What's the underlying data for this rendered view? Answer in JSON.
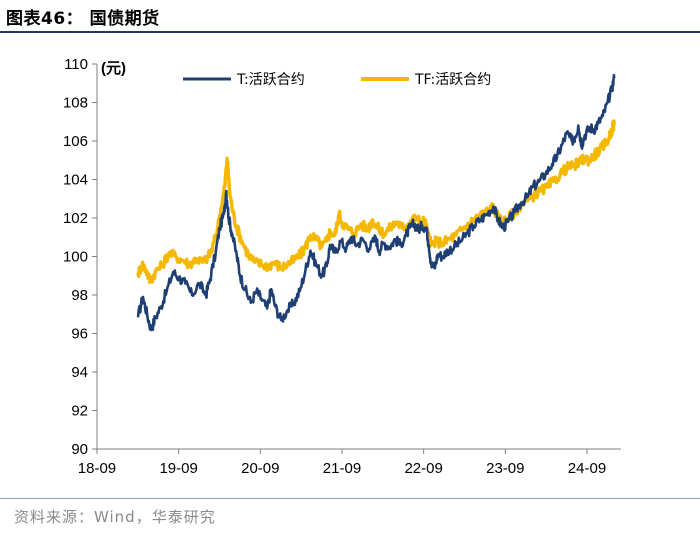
{
  "header": {
    "title": "图表46：  国债期货"
  },
  "footer": {
    "source": "资料来源：Wind，华泰研究"
  },
  "chart_data": {
    "type": "line",
    "unit_label": "(元)",
    "ylim": [
      90,
      110
    ],
    "y_ticks": [
      90,
      92,
      94,
      96,
      98,
      100,
      102,
      104,
      106,
      108,
      110
    ],
    "x_ticks": [
      "18-09",
      "19-09",
      "20-09",
      "21-09",
      "22-09",
      "23-09",
      "24-09"
    ],
    "x_range": [
      2018.667,
      2025.083
    ],
    "grid": false,
    "legend_position": "top",
    "series": [
      {
        "name": "T:活跃合约",
        "color": "#1f3f73",
        "points": [
          [
            2019.17,
            96.9
          ],
          [
            2019.23,
            97.9
          ],
          [
            2019.28,
            97.0
          ],
          [
            2019.33,
            96.2
          ],
          [
            2019.38,
            96.8
          ],
          [
            2019.45,
            97.4
          ],
          [
            2019.52,
            98.2
          ],
          [
            2019.6,
            99.2
          ],
          [
            2019.67,
            98.9
          ],
          [
            2019.75,
            98.6
          ],
          [
            2019.83,
            98.0
          ],
          [
            2019.92,
            98.6
          ],
          [
            2020.0,
            98.0
          ],
          [
            2020.05,
            98.8
          ],
          [
            2020.12,
            100.2
          ],
          [
            2020.17,
            101.5
          ],
          [
            2020.22,
            102.2
          ],
          [
            2020.25,
            103.4
          ],
          [
            2020.28,
            102.0
          ],
          [
            2020.32,
            101.2
          ],
          [
            2020.38,
            100.0
          ],
          [
            2020.42,
            99.0
          ],
          [
            2020.48,
            98.3
          ],
          [
            2020.55,
            97.6
          ],
          [
            2020.62,
            98.2
          ],
          [
            2020.68,
            97.8
          ],
          [
            2020.75,
            97.3
          ],
          [
            2020.8,
            98.3
          ],
          [
            2020.85,
            97.4
          ],
          [
            2020.92,
            96.7
          ],
          [
            2021.0,
            97.2
          ],
          [
            2021.08,
            97.6
          ],
          [
            2021.15,
            98.2
          ],
          [
            2021.22,
            99.3
          ],
          [
            2021.28,
            100.3
          ],
          [
            2021.35,
            99.6
          ],
          [
            2021.42,
            99.0
          ],
          [
            2021.48,
            99.5
          ],
          [
            2021.52,
            100.6
          ],
          [
            2021.58,
            100.2
          ],
          [
            2021.65,
            100.8
          ],
          [
            2021.72,
            100.4
          ],
          [
            2021.78,
            101.0
          ],
          [
            2021.85,
            100.6
          ],
          [
            2021.92,
            100.9
          ],
          [
            2022.0,
            100.4
          ],
          [
            2022.08,
            101.0
          ],
          [
            2022.12,
            100.3
          ],
          [
            2022.18,
            100.7
          ],
          [
            2022.25,
            100.5
          ],
          [
            2022.32,
            100.9
          ],
          [
            2022.38,
            100.6
          ],
          [
            2022.45,
            101.1
          ],
          [
            2022.5,
            101.5
          ],
          [
            2022.55,
            101.7
          ],
          [
            2022.6,
            101.4
          ],
          [
            2022.65,
            101.6
          ],
          [
            2022.7,
            101.5
          ],
          [
            2022.73,
            100.6
          ],
          [
            2022.76,
            99.6
          ],
          [
            2022.8,
            99.4
          ],
          [
            2022.84,
            100.1
          ],
          [
            2022.9,
            100.0
          ],
          [
            2022.96,
            100.3
          ],
          [
            2023.04,
            100.5
          ],
          [
            2023.12,
            100.8
          ],
          [
            2023.2,
            101.2
          ],
          [
            2023.28,
            101.6
          ],
          [
            2023.36,
            101.9
          ],
          [
            2023.44,
            102.2
          ],
          [
            2023.52,
            102.6
          ],
          [
            2023.58,
            101.9
          ],
          [
            2023.64,
            101.5
          ],
          [
            2023.7,
            101.8
          ],
          [
            2023.78,
            102.3
          ],
          [
            2023.86,
            102.8
          ],
          [
            2023.94,
            103.1
          ],
          [
            2024.0,
            103.6
          ],
          [
            2024.08,
            103.9
          ],
          [
            2024.16,
            104.3
          ],
          [
            2024.24,
            104.8
          ],
          [
            2024.3,
            105.2
          ],
          [
            2024.36,
            105.8
          ],
          [
            2024.42,
            106.4
          ],
          [
            2024.48,
            106.0
          ],
          [
            2024.52,
            106.2
          ],
          [
            2024.56,
            106.8
          ],
          [
            2024.6,
            105.8
          ],
          [
            2024.64,
            106.3
          ],
          [
            2024.7,
            106.7
          ],
          [
            2024.75,
            106.6
          ],
          [
            2024.8,
            106.9
          ],
          [
            2024.86,
            107.3
          ],
          [
            2024.92,
            108.0
          ],
          [
            2024.97,
            108.7
          ],
          [
            2025.0,
            109.3
          ]
        ]
      },
      {
        "name": "TF:活跃合约",
        "color": "#f5b800",
        "points": [
          [
            2019.17,
            99.1
          ],
          [
            2019.22,
            99.6
          ],
          [
            2019.27,
            99.3
          ],
          [
            2019.32,
            98.7
          ],
          [
            2019.38,
            99.2
          ],
          [
            2019.46,
            99.5
          ],
          [
            2019.55,
            100.2
          ],
          [
            2019.63,
            100.0
          ],
          [
            2019.72,
            99.8
          ],
          [
            2019.8,
            99.6
          ],
          [
            2019.88,
            99.9
          ],
          [
            2019.96,
            99.7
          ],
          [
            2020.03,
            100.0
          ],
          [
            2020.08,
            100.4
          ],
          [
            2020.14,
            101.4
          ],
          [
            2020.19,
            102.6
          ],
          [
            2020.23,
            103.6
          ],
          [
            2020.26,
            105.1
          ],
          [
            2020.29,
            103.4
          ],
          [
            2020.33,
            102.3
          ],
          [
            2020.38,
            101.5
          ],
          [
            2020.44,
            100.8
          ],
          [
            2020.52,
            100.1
          ],
          [
            2020.6,
            99.7
          ],
          [
            2020.68,
            99.6
          ],
          [
            2020.76,
            99.5
          ],
          [
            2020.84,
            99.7
          ],
          [
            2020.92,
            99.4
          ],
          [
            2021.0,
            99.6
          ],
          [
            2021.08,
            99.8
          ],
          [
            2021.16,
            100.1
          ],
          [
            2021.22,
            100.5
          ],
          [
            2021.28,
            101.1
          ],
          [
            2021.35,
            100.9
          ],
          [
            2021.42,
            100.5
          ],
          [
            2021.48,
            100.8
          ],
          [
            2021.52,
            101.3
          ],
          [
            2021.58,
            101.1
          ],
          [
            2021.63,
            102.2
          ],
          [
            2021.68,
            101.7
          ],
          [
            2021.75,
            101.4
          ],
          [
            2021.82,
            101.2
          ],
          [
            2021.9,
            101.7
          ],
          [
            2021.98,
            101.4
          ],
          [
            2022.04,
            101.9
          ],
          [
            2022.1,
            101.5
          ],
          [
            2022.18,
            101.2
          ],
          [
            2022.26,
            101.5
          ],
          [
            2022.34,
            101.8
          ],
          [
            2022.4,
            101.5
          ],
          [
            2022.46,
            101.6
          ],
          [
            2022.52,
            101.9
          ],
          [
            2022.58,
            102.0
          ],
          [
            2022.64,
            101.7
          ],
          [
            2022.68,
            101.9
          ],
          [
            2022.72,
            101.1
          ],
          [
            2022.76,
            100.6
          ],
          [
            2022.82,
            100.8
          ],
          [
            2022.9,
            100.7
          ],
          [
            2022.98,
            100.9
          ],
          [
            2023.06,
            101.1
          ],
          [
            2023.14,
            101.4
          ],
          [
            2023.22,
            101.7
          ],
          [
            2023.3,
            102.0
          ],
          [
            2023.38,
            102.2
          ],
          [
            2023.46,
            102.4
          ],
          [
            2023.52,
            102.6
          ],
          [
            2023.58,
            102.0
          ],
          [
            2023.64,
            101.8
          ],
          [
            2023.7,
            102.0
          ],
          [
            2023.78,
            102.3
          ],
          [
            2023.86,
            102.7
          ],
          [
            2023.94,
            102.9
          ],
          [
            2024.02,
            103.2
          ],
          [
            2024.1,
            103.4
          ],
          [
            2024.18,
            103.6
          ],
          [
            2024.26,
            103.9
          ],
          [
            2024.34,
            104.3
          ],
          [
            2024.42,
            104.6
          ],
          [
            2024.5,
            104.7
          ],
          [
            2024.58,
            104.9
          ],
          [
            2024.64,
            105.1
          ],
          [
            2024.7,
            105.0
          ],
          [
            2024.76,
            105.3
          ],
          [
            2024.82,
            105.5
          ],
          [
            2024.88,
            105.8
          ],
          [
            2024.94,
            106.2
          ],
          [
            2024.98,
            106.7
          ],
          [
            2025.0,
            106.9
          ]
        ]
      }
    ]
  }
}
